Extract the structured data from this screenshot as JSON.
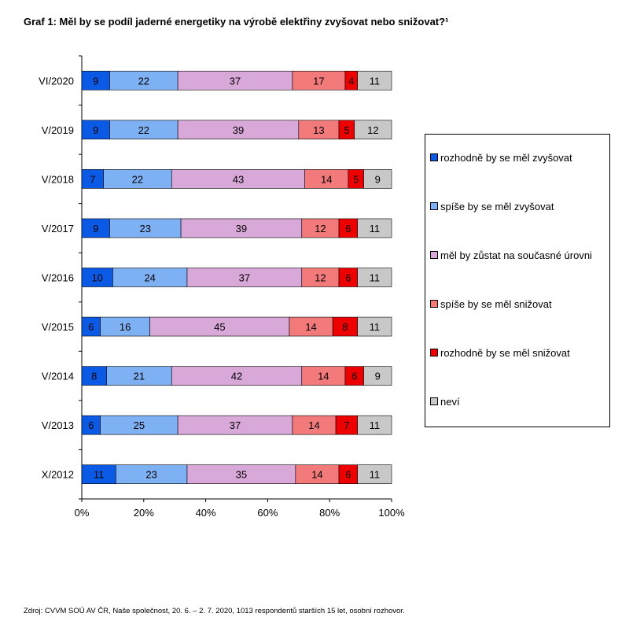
{
  "title": "Graf 1: Měl by se podíl jaderné energetiky na výrobě elektřiny zvyšovat nebo snižovat?¹",
  "source": "Zdroj: CVVM SOÚ AV ČR, Naše společnost, 20. 6. – 2. 7. 2020, 1013 respondentů starších 15 let, osobní rozhovor.",
  "chart_data": {
    "type": "bar",
    "orientation": "horizontal",
    "stacked": "percent",
    "categories": [
      "VI/2020",
      "V/2019",
      "V/2018",
      "V/2017",
      "V/2016",
      "V/2015",
      "V/2014",
      "V/2013",
      "X/2012"
    ],
    "x_ticks": [
      "0%",
      "20%",
      "40%",
      "60%",
      "80%",
      "100%"
    ],
    "xlim": [
      0,
      100
    ],
    "grid": false,
    "legend_position": "right",
    "series": [
      {
        "name": "rozhodně by se měl zvyšovat",
        "color": "#0a5ae6",
        "values": [
          9,
          9,
          7,
          9,
          10,
          6,
          8,
          6,
          11
        ]
      },
      {
        "name": "spíše by se měl zvyšovat",
        "color": "#7eb0f4",
        "values": [
          22,
          22,
          22,
          23,
          24,
          16,
          21,
          25,
          23
        ]
      },
      {
        "name": "měl by zůstat na současné úrovni",
        "color": "#d8a8d8",
        "values": [
          37,
          39,
          43,
          39,
          37,
          45,
          42,
          37,
          35
        ]
      },
      {
        "name": "spíše by se měl snižovat",
        "color": "#f27a7a",
        "values": [
          17,
          13,
          14,
          12,
          12,
          14,
          14,
          14,
          14
        ]
      },
      {
        "name": "rozhodně by se měl snižovat",
        "color": "#ee0000",
        "values": [
          4,
          5,
          5,
          6,
          6,
          8,
          6,
          7,
          6
        ]
      },
      {
        "name": "neví",
        "color": "#c8c8c8",
        "values": [
          11,
          12,
          9,
          11,
          11,
          11,
          9,
          11,
          11
        ]
      }
    ]
  }
}
